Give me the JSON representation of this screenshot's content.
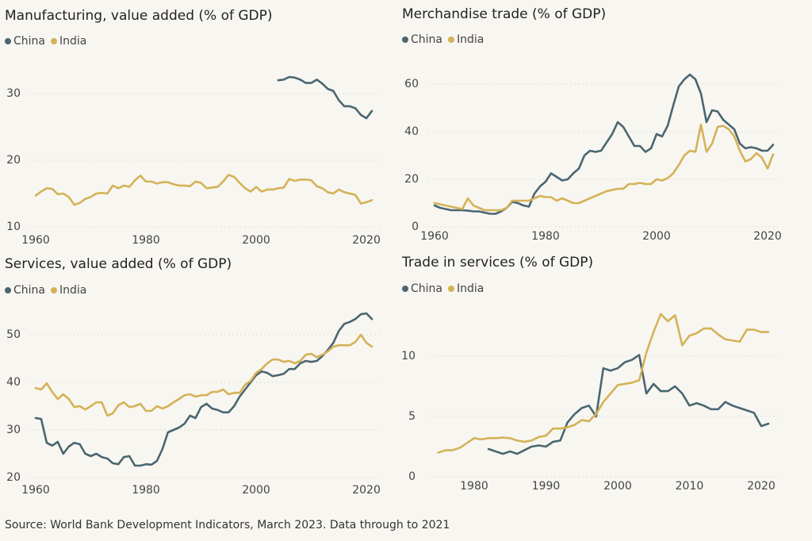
{
  "chart_data": [
    {
      "type": "line",
      "title": "Manufacturing, value added (% of GDP)",
      "x": [
        1960,
        1961,
        1962,
        1963,
        1964,
        1965,
        1966,
        1967,
        1968,
        1969,
        1970,
        1971,
        1972,
        1973,
        1974,
        1975,
        1976,
        1977,
        1978,
        1979,
        1980,
        1981,
        1982,
        1983,
        1984,
        1985,
        1986,
        1987,
        1988,
        1989,
        1990,
        1991,
        1992,
        1993,
        1994,
        1995,
        1996,
        1997,
        1998,
        1999,
        2000,
        2001,
        2002,
        2003,
        2004,
        2005,
        2006,
        2007,
        2008,
        2009,
        2010,
        2011,
        2012,
        2013,
        2014,
        2015,
        2016,
        2017,
        2018,
        2019,
        2020,
        2021
      ],
      "series": [
        {
          "name": "China",
          "color": "#4a6670",
          "values": [
            null,
            null,
            null,
            null,
            null,
            null,
            null,
            null,
            null,
            null,
            null,
            null,
            null,
            null,
            null,
            null,
            null,
            null,
            null,
            null,
            null,
            null,
            null,
            null,
            null,
            null,
            null,
            null,
            null,
            null,
            null,
            null,
            null,
            null,
            null,
            null,
            null,
            null,
            null,
            null,
            null,
            null,
            null,
            null,
            32.0,
            32.1,
            32.5,
            32.4,
            32.1,
            31.6,
            31.6,
            32.1,
            31.5,
            30.7,
            30.4,
            29.0,
            28.1,
            28.1,
            27.8,
            26.8,
            26.3,
            27.4
          ]
        },
        {
          "name": "India",
          "color": "#d4b257",
          "values": [
            14.7,
            15.3,
            15.8,
            15.7,
            14.9,
            15.0,
            14.5,
            13.3,
            13.6,
            14.2,
            14.5,
            15.0,
            15.1,
            15.0,
            16.2,
            15.8,
            16.2,
            16.0,
            17.0,
            17.7,
            16.8,
            16.8,
            16.5,
            16.7,
            16.7,
            16.4,
            16.2,
            16.2,
            16.1,
            16.8,
            16.6,
            15.8,
            15.9,
            16.0,
            16.8,
            17.8,
            17.5,
            16.6,
            15.8,
            15.3,
            16.0,
            15.3,
            15.6,
            15.6,
            15.8,
            15.9,
            17.2,
            16.9,
            17.1,
            17.1,
            17.0,
            16.1,
            15.8,
            15.2,
            15.0,
            15.6,
            15.2,
            15.0,
            14.8,
            13.5,
            13.7,
            14.0
          ]
        }
      ],
      "xlim": [
        1958,
        2023
      ],
      "xticks": [
        1960,
        1980,
        2000,
        2020
      ],
      "ylim": [
        10,
        35
      ],
      "yticks": [
        10,
        20,
        30
      ],
      "grid": true
    },
    {
      "type": "line",
      "title": "Merchandise trade (% of GDP)",
      "x": [
        1960,
        1961,
        1962,
        1963,
        1964,
        1965,
        1966,
        1967,
        1968,
        1969,
        1970,
        1971,
        1972,
        1973,
        1974,
        1975,
        1976,
        1977,
        1978,
        1979,
        1980,
        1981,
        1982,
        1983,
        1984,
        1985,
        1986,
        1987,
        1988,
        1989,
        1990,
        1991,
        1992,
        1993,
        1994,
        1995,
        1996,
        1997,
        1998,
        1999,
        2000,
        2001,
        2002,
        2003,
        2004,
        2005,
        2006,
        2007,
        2008,
        2009,
        2010,
        2011,
        2012,
        2013,
        2014,
        2015,
        2016,
        2017,
        2018,
        2019,
        2020,
        2021
      ],
      "series": [
        {
          "name": "China",
          "color": "#4a6670",
          "values": [
            9,
            8,
            7.5,
            7,
            7,
            7,
            6.8,
            6.5,
            6.5,
            6,
            5.5,
            5.5,
            6.5,
            8,
            10.5,
            10,
            9,
            8.5,
            14,
            17,
            19,
            22.5,
            21,
            19.5,
            20,
            22.5,
            24.5,
            30,
            32,
            31.5,
            32,
            35.5,
            39,
            44,
            42,
            38,
            34,
            34,
            31.5,
            33,
            39,
            38,
            42.5,
            51,
            59,
            62,
            64,
            62,
            56,
            44,
            49,
            48.5,
            45,
            43,
            41,
            35,
            33,
            33.5,
            33,
            32,
            32,
            34.5
          ]
        },
        {
          "name": "India",
          "color": "#d4b257",
          "values": [
            10,
            9.5,
            9,
            8.5,
            8,
            7.5,
            12,
            9,
            8,
            7,
            7,
            7,
            7,
            8,
            11,
            11,
            11,
            11,
            12,
            13,
            12.5,
            12.5,
            11,
            12,
            11,
            10,
            10,
            11,
            12,
            13,
            14,
            15,
            15.5,
            16,
            16,
            18,
            18,
            18.5,
            18,
            18,
            20,
            19.5,
            20.5,
            22.5,
            26,
            30,
            32,
            31.5,
            43,
            31.5,
            35,
            42,
            42.5,
            41,
            38,
            32,
            27.5,
            28.5,
            31,
            29,
            24.5,
            30.5
          ]
        }
      ],
      "xlim": [
        1958,
        2023
      ],
      "xticks": [
        1960,
        1980,
        2000,
        2020
      ],
      "ylim": [
        0,
        70
      ],
      "yticks": [
        0,
        20,
        40,
        60
      ],
      "grid": true
    },
    {
      "type": "line",
      "title": "Services, value added (% of GDP)",
      "x": [
        1960,
        1961,
        1962,
        1963,
        1964,
        1965,
        1966,
        1967,
        1968,
        1969,
        1970,
        1971,
        1972,
        1973,
        1974,
        1975,
        1976,
        1977,
        1978,
        1979,
        1980,
        1981,
        1982,
        1983,
        1984,
        1985,
        1986,
        1987,
        1988,
        1989,
        1990,
        1991,
        1992,
        1993,
        1994,
        1995,
        1996,
        1997,
        1998,
        1999,
        2000,
        2001,
        2002,
        2003,
        2004,
        2005,
        2006,
        2007,
        2008,
        2009,
        2010,
        2011,
        2012,
        2013,
        2014,
        2015,
        2016,
        2017,
        2018,
        2019,
        2020,
        2021
      ],
      "series": [
        {
          "name": "China",
          "color": "#4a6670",
          "values": [
            32.5,
            32.3,
            27.3,
            26.7,
            27.5,
            25,
            26.5,
            27.3,
            27,
            25,
            24.5,
            25,
            24.3,
            24,
            23,
            22.8,
            24.3,
            24.5,
            22.5,
            22.5,
            22.8,
            22.7,
            23.5,
            26,
            29.5,
            30,
            30.5,
            31.3,
            33,
            32.5,
            34.8,
            35.5,
            34.5,
            34.2,
            33.7,
            33.7,
            35,
            37,
            38.5,
            40,
            41.5,
            42.3,
            42,
            41.3,
            41.5,
            41.8,
            42.8,
            42.8,
            44,
            44.5,
            44.3,
            44.5,
            45.5,
            46.8,
            48.3,
            50.8,
            52.3,
            52.7,
            53.3,
            54.3,
            54.5,
            53.3
          ]
        },
        {
          "name": "India",
          "color": "#d4b257",
          "values": [
            38.8,
            38.5,
            39.8,
            38,
            36.5,
            37.5,
            36.5,
            34.8,
            35,
            34.3,
            35,
            35.8,
            35.8,
            33,
            33.5,
            35.2,
            35.8,
            34.8,
            35,
            35.5,
            34,
            34,
            35,
            34.5,
            35,
            35.8,
            36.5,
            37.3,
            37.5,
            37,
            37.3,
            37.3,
            38,
            38,
            38.5,
            37.5,
            37.8,
            37.8,
            39.5,
            40.3,
            42,
            42.8,
            44,
            44.8,
            44.8,
            44.3,
            44.5,
            44,
            44.5,
            45.8,
            46,
            45.3,
            45.8,
            46.5,
            47.5,
            47.8,
            47.8,
            47.8,
            48.5,
            50,
            48.3,
            47.5
          ]
        }
      ],
      "xlim": [
        1958,
        2023
      ],
      "xticks": [
        1960,
        1980,
        2000,
        2020
      ],
      "ylim": [
        20,
        55
      ],
      "yticks": [
        20,
        30,
        40,
        50
      ],
      "grid": true
    },
    {
      "type": "line",
      "title": "Trade in services (% of GDP)",
      "x": [
        1975,
        1976,
        1977,
        1978,
        1979,
        1980,
        1981,
        1982,
        1983,
        1984,
        1985,
        1986,
        1987,
        1988,
        1989,
        1990,
        1991,
        1992,
        1993,
        1994,
        1995,
        1996,
        1997,
        1998,
        1999,
        2000,
        2001,
        2002,
        2003,
        2004,
        2005,
        2006,
        2007,
        2008,
        2009,
        2010,
        2011,
        2012,
        2013,
        2014,
        2015,
        2016,
        2017,
        2018,
        2019,
        2020,
        2021
      ],
      "series": [
        {
          "name": "China",
          "color": "#4a6670",
          "values": [
            null,
            null,
            null,
            null,
            null,
            null,
            null,
            2.3,
            2.1,
            1.9,
            2.1,
            1.9,
            2.2,
            2.5,
            2.6,
            2.5,
            2.9,
            3.0,
            4.5,
            5.2,
            5.7,
            5.9,
            5.0,
            9.0,
            8.8,
            9.0,
            9.5,
            9.7,
            10.1,
            6.9,
            7.7,
            7.1,
            7.1,
            7.5,
            6.9,
            5.9,
            6.1,
            5.9,
            5.6,
            5.6,
            6.2,
            5.9,
            5.7,
            5.5,
            5.3,
            4.2,
            4.4
          ]
        },
        {
          "name": "India",
          "color": "#d4b257",
          "values": [
            2.0,
            2.2,
            2.2,
            2.4,
            2.8,
            3.2,
            3.1,
            3.2,
            3.2,
            3.25,
            3.2,
            3.0,
            2.9,
            3.0,
            3.3,
            3.4,
            4.0,
            4.0,
            4.1,
            4.3,
            4.7,
            4.6,
            5.2,
            6.2,
            6.9,
            7.6,
            7.7,
            7.8,
            8.0,
            10.3,
            12.0,
            13.5,
            12.9,
            13.4,
            10.9,
            11.7,
            11.9,
            12.3,
            12.3,
            11.8,
            11.4,
            11.3,
            11.2,
            12.2,
            12.2,
            12.0,
            12.0
          ]
        }
      ],
      "xlim": [
        1973,
        2023
      ],
      "xticks": [
        1980,
        1990,
        2000,
        2010,
        2020
      ],
      "ylim": [
        0,
        14
      ],
      "yticks": [
        0,
        5,
        10
      ],
      "grid": true
    }
  ],
  "source": "Source: World Bank Development Indicators, March 2023. Data through to 2021"
}
